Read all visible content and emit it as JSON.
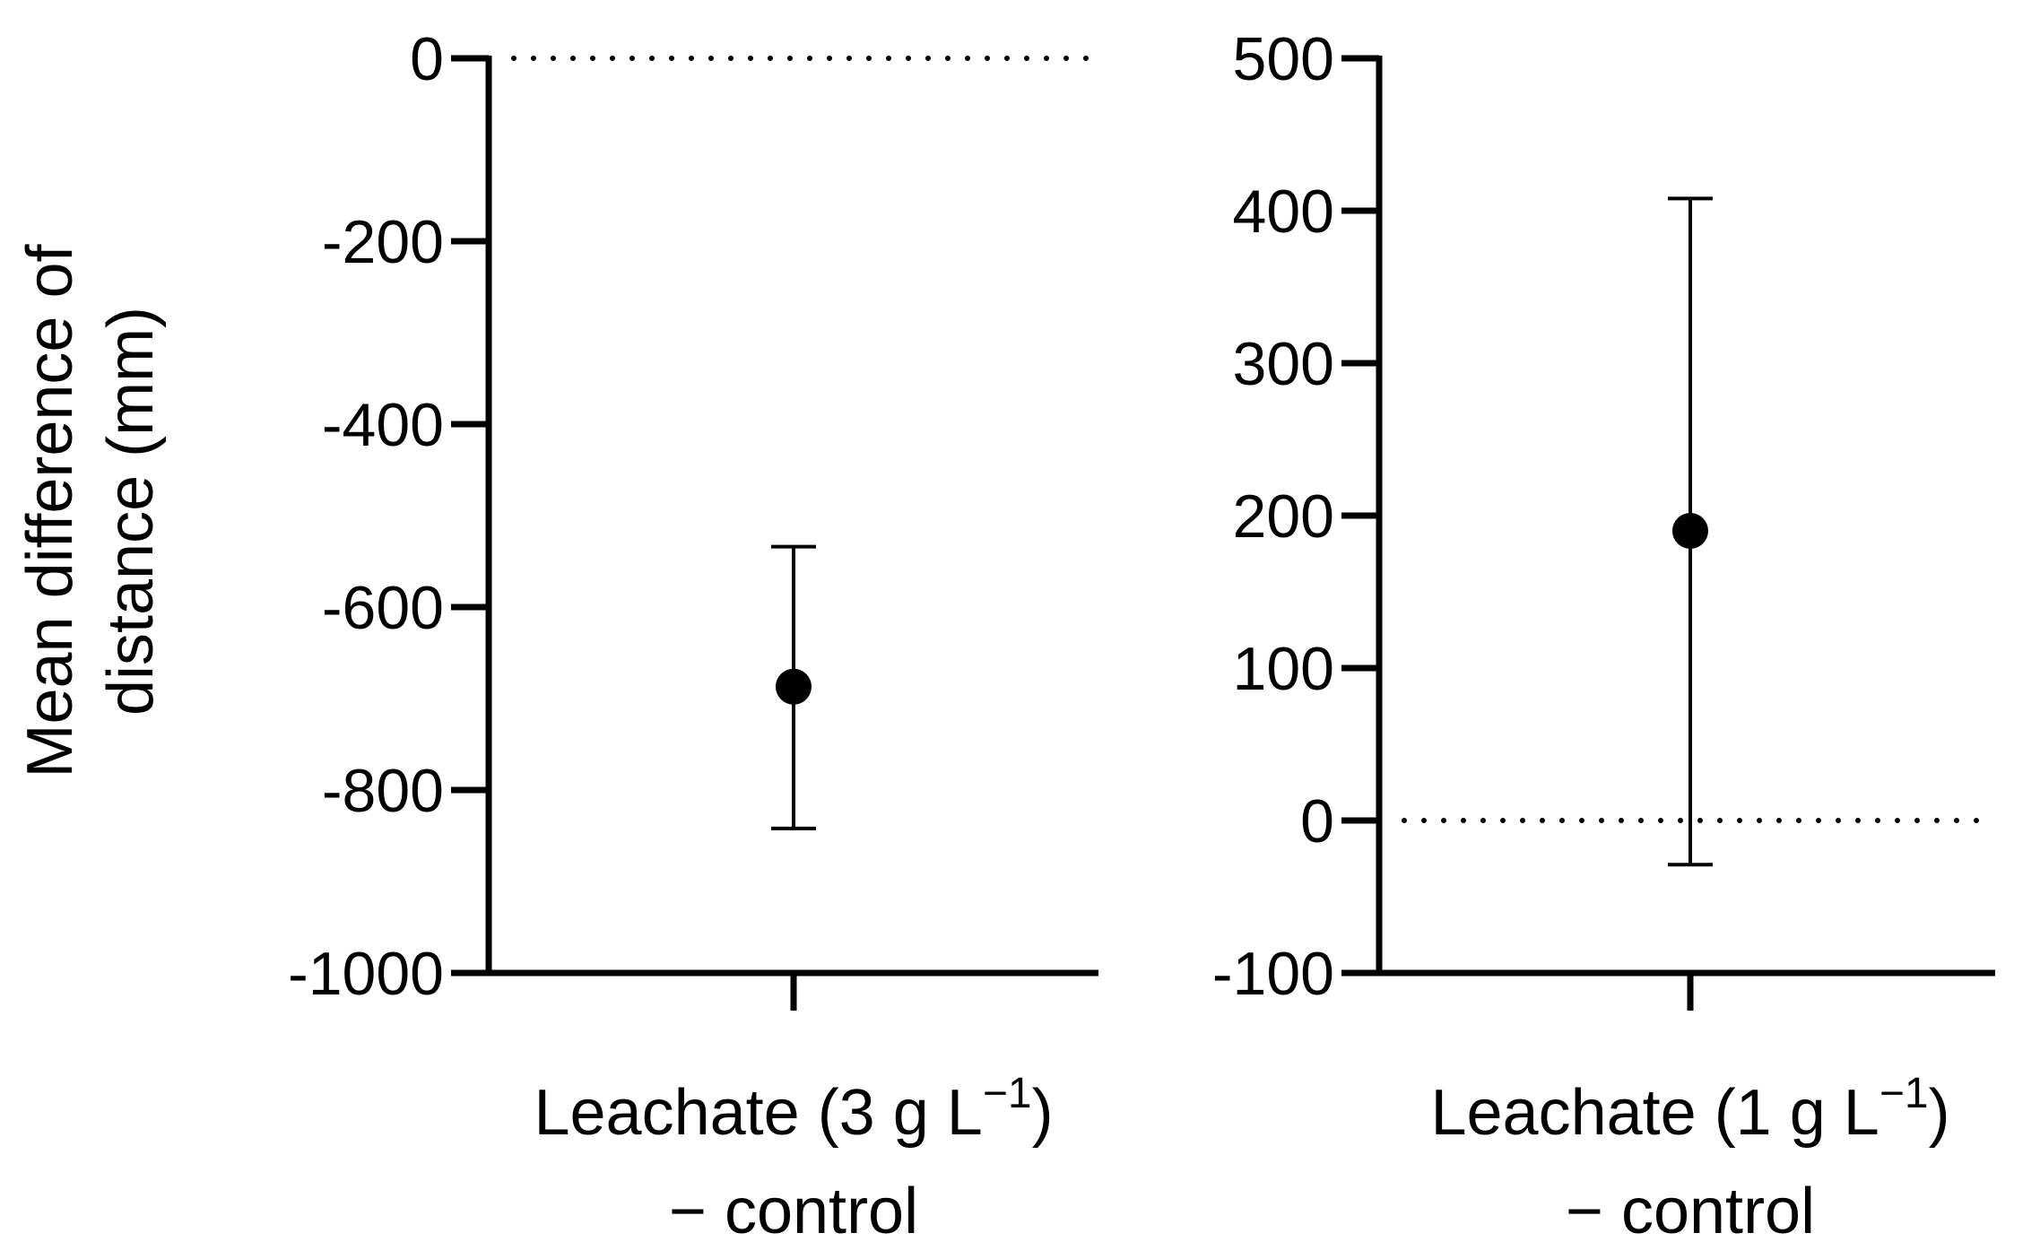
{
  "chart_data": [
    {
      "type": "scatter",
      "ylabel_lines": [
        "Mean difference of",
        "distance (mm)"
      ],
      "ylim": [
        -1000,
        0
      ],
      "yticks": [
        0,
        -200,
        -400,
        -600,
        -800,
        -1000
      ],
      "ytick_labels": [
        "0",
        "-200",
        "-400",
        "-600",
        "-800",
        "-1000"
      ],
      "category_label_lines": [
        "Leachate (3 g L",
        "−1",
        ")",
        "− control"
      ],
      "point": {
        "y": -687,
        "ci_low": -842,
        "ci_high": -534
      },
      "reference_line": 0,
      "grid": false,
      "colors": {
        "marker": "#000000",
        "axis": "#000000"
      }
    },
    {
      "type": "scatter",
      "ylim": [
        -100,
        500
      ],
      "yticks": [
        500,
        400,
        300,
        200,
        100,
        0,
        -100
      ],
      "ytick_labels": [
        "500",
        "400",
        "300",
        "200",
        "100",
        "0",
        "-100"
      ],
      "category_label_lines": [
        "Leachate (1 g L",
        "−1",
        ")",
        "− control"
      ],
      "point": {
        "y": 190,
        "ci_low": -29,
        "ci_high": 408
      },
      "reference_line": 0,
      "grid": false,
      "colors": {
        "marker": "#000000",
        "axis": "#000000"
      }
    }
  ]
}
